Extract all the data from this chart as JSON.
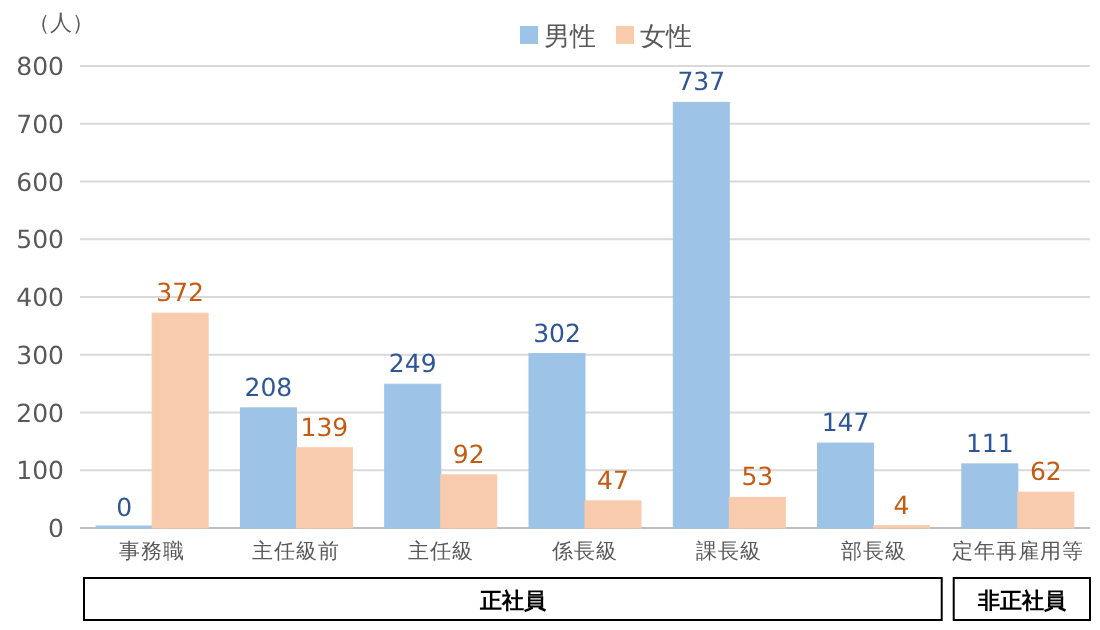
{
  "chart_data": {
    "type": "bar",
    "ylabel": "（人）",
    "categories": [
      "事務職",
      "主任級前",
      "主任級",
      "係長級",
      "課長級",
      "部長級",
      "定年再雇用等"
    ],
    "series": [
      {
        "name": "男性",
        "color": "#9dc3e6",
        "values": [
          0,
          208,
          249,
          302,
          737,
          147,
          111
        ]
      },
      {
        "name": "女性",
        "color": "#f8cbad",
        "values": [
          372,
          139,
          92,
          47,
          53,
          4,
          62
        ]
      }
    ],
    "ylim": [
      0,
      800
    ],
    "yticks": [
      0,
      100,
      200,
      300,
      400,
      500,
      600,
      700,
      800
    ],
    "grid": "y",
    "legend": "top",
    "data_labels": true,
    "annotations": [
      "正社員",
      "非正社員"
    ]
  }
}
